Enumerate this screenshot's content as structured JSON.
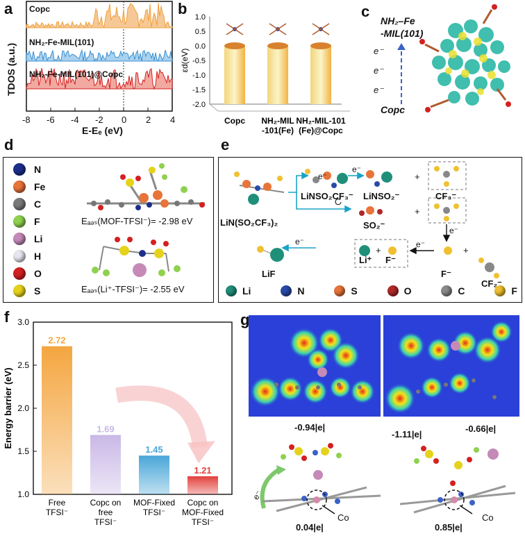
{
  "panel_labels": [
    "a",
    "b",
    "c",
    "d",
    "e",
    "f",
    "g"
  ],
  "panel_a": {
    "ylabel": "TDOS (a.u.)",
    "xlabel": "E-Eₑ (eV)",
    "xticks": [
      "-8",
      "-6",
      "-4",
      "-2",
      "0",
      "2",
      "4"
    ],
    "traces": [
      {
        "label": "Copc",
        "color": "#f0a03c"
      },
      {
        "label": "NH₂-Fe-MIL(101)",
        "color": "#3b8fd0"
      },
      {
        "label": "NH₂-Fe-MIL(101)@Copc",
        "color": "#d42020"
      }
    ]
  },
  "panel_c": {
    "top_label_1": "NH₂–Fe",
    "top_label_2": "-MIL(101)",
    "e_labels": [
      "e⁻",
      "e⁻",
      "e⁻"
    ],
    "bottom_label": "Copc"
  },
  "panel_d": {
    "legend": [
      {
        "symbol": "N",
        "color": "#1c2f8c"
      },
      {
        "symbol": "Fe",
        "color": "#e8743a"
      },
      {
        "symbol": "C",
        "color": "#7a7a7a"
      },
      {
        "symbol": "F",
        "color": "#8fd14f"
      },
      {
        "symbol": "Li",
        "color": "#c58ab8"
      },
      {
        "symbol": "H",
        "color": "#e6e6f0"
      },
      {
        "symbol": "O",
        "color": "#d42020"
      },
      {
        "symbol": "S",
        "color": "#e6d21c"
      }
    ],
    "eads_mof": "Eₐₔₛ(MOF-TFSI⁻)= -2.98 eV",
    "eads_li": "Eₐₔₛ(Li⁺-TFSI⁻)= -2.55 eV"
  },
  "panel_e": {
    "species": {
      "litfsi": "LiN(SO₂CF₃)₂",
      "linso2cf3": "LiNSO₂CF₃⁻",
      "linso2": "LiNSO₂⁻",
      "cf3": "CF₃⁻",
      "so2": "SO₂⁻",
      "cf2": "CF₂⁻",
      "f": "F⁻",
      "li_plus": "Li⁺",
      "f_minus": "F⁻",
      "lif": "LiF"
    },
    "electron": "e⁻",
    "plus": "+",
    "legend": [
      {
        "symbol": "Li",
        "color": "#1f8f7a"
      },
      {
        "symbol": "N",
        "color": "#2a4aa8"
      },
      {
        "symbol": "S",
        "color": "#e8743a"
      },
      {
        "symbol": "O",
        "color": "#b02828"
      },
      {
        "symbol": "C",
        "color": "#8a8a8a"
      },
      {
        "symbol": "F",
        "color": "#f0c030"
      }
    ]
  },
  "panel_g": {
    "charges_top": [
      "-0.94|e|",
      "-1.11|e|",
      "-0.66|e|"
    ],
    "charges_bottom": [
      "0.04|e|",
      "0.85|e|"
    ],
    "co_label": "Co",
    "electron": "e⁻"
  },
  "chart_data": [
    {
      "type": "bar",
      "id": "panel-b",
      "title": "",
      "ylabel": "εd(eV)",
      "categories": [
        "Copc",
        "NH₂-MIL\n-101(Fe)",
        "NH₂-MIL-101\n(Fe)@Copc"
      ],
      "values": [
        -2.0,
        -2.0,
        -2.0
      ],
      "bar_tops": [
        0.0,
        0.0,
        0.0
      ],
      "ylim": [
        -2.0,
        1.0
      ],
      "yticks": [
        "1.0",
        "0.5",
        "0.0",
        "-0.5",
        "-1.0",
        "-1.5",
        "-2.0"
      ]
    },
    {
      "type": "bar",
      "id": "panel-f",
      "title": "",
      "xlabel": "",
      "ylabel": "Energy barrier (eV)",
      "categories": [
        "Free TFSI⁻",
        "Copc on free TFSI⁻",
        "MOF-Fixed TFSI⁻",
        "Copc on MOF-Fixed TFSI⁻"
      ],
      "values": [
        2.72,
        1.69,
        1.45,
        1.21
      ],
      "labels": [
        "2.72",
        "1.69",
        "1.45",
        "1.21"
      ],
      "colors": [
        "#f4a640",
        "#c9b8e6",
        "#4aa6d8",
        "#e2413c"
      ],
      "ylim": [
        1.0,
        3.0
      ],
      "yticks": [
        "3.0",
        "2.5",
        "2.0",
        "1.5",
        "1.0"
      ]
    }
  ]
}
